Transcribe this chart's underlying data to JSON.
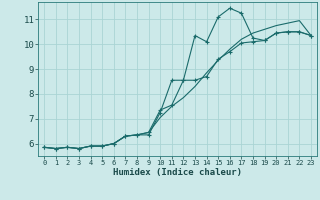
{
  "xlabel": "Humidex (Indice chaleur)",
  "xlim": [
    -0.5,
    23.5
  ],
  "ylim": [
    5.5,
    11.7
  ],
  "yticks": [
    6,
    7,
    8,
    9,
    10,
    11
  ],
  "xticks": [
    0,
    1,
    2,
    3,
    4,
    5,
    6,
    7,
    8,
    9,
    10,
    11,
    12,
    13,
    14,
    15,
    16,
    17,
    18,
    19,
    20,
    21,
    22,
    23
  ],
  "background_color": "#cce9e9",
  "grid_color": "#aad4d4",
  "line_color": "#1a6b6b",
  "line1_x": [
    0,
    1,
    2,
    3,
    4,
    5,
    6,
    7,
    8,
    9,
    10,
    11,
    12,
    13,
    14,
    15,
    16,
    17,
    18,
    19,
    20,
    21,
    22,
    23
  ],
  "line1_y": [
    5.85,
    5.8,
    5.85,
    5.8,
    5.9,
    5.9,
    6.0,
    6.3,
    6.35,
    6.35,
    7.25,
    8.55,
    8.55,
    10.35,
    10.1,
    11.1,
    11.45,
    11.25,
    10.25,
    10.15,
    10.45,
    10.5,
    10.5,
    10.35
  ],
  "line2_x": [
    0,
    1,
    2,
    3,
    4,
    5,
    6,
    7,
    8,
    9,
    10,
    11,
    12,
    13,
    14,
    15,
    16,
    17,
    18,
    19,
    20,
    21,
    22,
    23
  ],
  "line2_y": [
    5.85,
    5.8,
    5.85,
    5.8,
    5.9,
    5.9,
    6.0,
    6.3,
    6.35,
    6.45,
    7.35,
    7.55,
    8.55,
    8.55,
    8.7,
    9.4,
    9.7,
    10.05,
    10.1,
    10.15,
    10.45,
    10.5,
    10.5,
    10.35
  ],
  "line3_x": [
    0,
    1,
    2,
    3,
    4,
    5,
    6,
    7,
    8,
    9,
    10,
    11,
    12,
    13,
    14,
    15,
    16,
    17,
    18,
    19,
    20,
    21,
    22,
    23
  ],
  "line3_y": [
    5.85,
    5.8,
    5.85,
    5.8,
    5.9,
    5.9,
    6.0,
    6.3,
    6.35,
    6.45,
    7.05,
    7.5,
    7.85,
    8.3,
    8.85,
    9.35,
    9.8,
    10.2,
    10.45,
    10.6,
    10.75,
    10.85,
    10.95,
    10.35
  ]
}
